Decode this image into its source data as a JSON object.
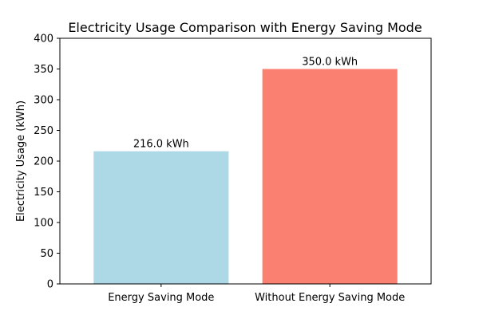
{
  "chart_data": {
    "type": "bar",
    "title": "Electricity Usage Comparison with Energy Saving Mode",
    "xlabel": "",
    "ylabel": "Electricity Usage (kWh)",
    "categories": [
      "Energy Saving Mode",
      "Without Energy Saving Mode"
    ],
    "values": [
      216.0,
      350.0
    ],
    "value_labels": [
      "216.0 kWh",
      "350.0 kWh"
    ],
    "colors": [
      "#add8e6",
      "#fa8072"
    ],
    "ylim": [
      0,
      400
    ],
    "yticks": [
      0,
      50,
      100,
      150,
      200,
      250,
      300,
      350,
      400
    ],
    "grid": false,
    "legend": "none"
  }
}
